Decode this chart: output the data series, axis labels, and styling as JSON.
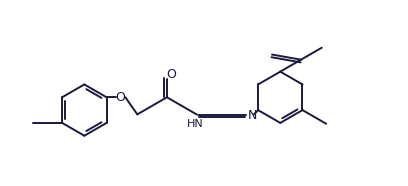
{
  "background": "#ffffff",
  "line_color": "#1a1a3e",
  "line_width": 1.4,
  "fig_width": 4.08,
  "fig_height": 1.86,
  "dpi": 100,
  "xlim": [
    -0.5,
    10.5
  ],
  "ylim": [
    -2.2,
    3.2
  ]
}
